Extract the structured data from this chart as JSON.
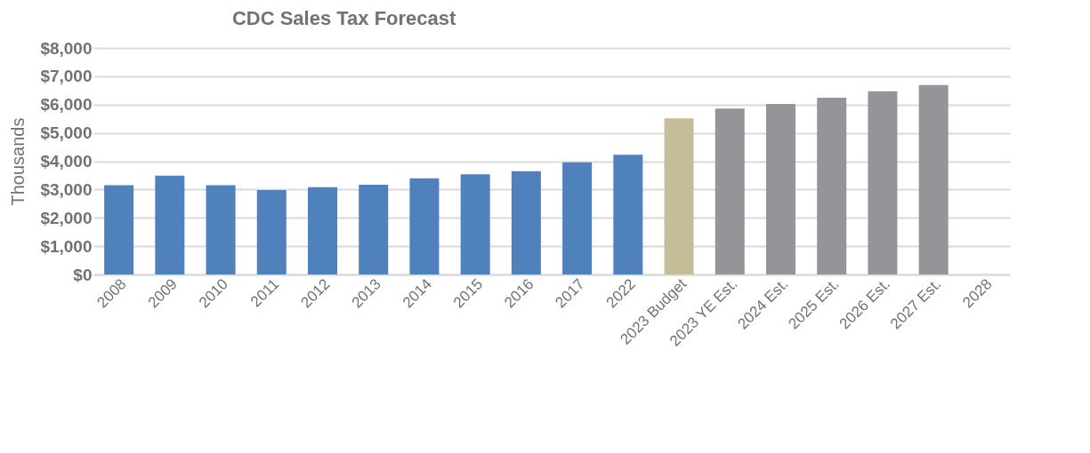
{
  "chart_data": {
    "type": "bar",
    "title": "CDC  Sales Tax Forecast",
    "ylabel": "Thousands",
    "categories": [
      "2008",
      "2009",
      "2010",
      "2011",
      "2012",
      "2013",
      "2014",
      "2015",
      "2016",
      "2017",
      "2022",
      "2023 Budget",
      "2023 YE Est.",
      "2024 Est.",
      "2025 Est.",
      "2026 Est.",
      "2027 Est.",
      "2028"
    ],
    "values": [
      3150,
      3490,
      3150,
      2980,
      3080,
      3170,
      3400,
      3540,
      3650,
      3960,
      4230,
      5510,
      5860,
      6020,
      6240,
      6470,
      6690,
      null
    ],
    "colors": [
      "#4f81bd",
      "#4f81bd",
      "#4f81bd",
      "#4f81bd",
      "#4f81bd",
      "#4f81bd",
      "#4f81bd",
      "#4f81bd",
      "#4f81bd",
      "#4f81bd",
      "#4f81bd",
      "#c4bd97",
      "#939598",
      "#939598",
      "#939598",
      "#939598",
      "#939598",
      "#939598"
    ],
    "ylim": [
      0,
      8000
    ],
    "yticks": [
      {
        "value": 0,
        "label": "$0"
      },
      {
        "value": 1000,
        "label": "$1,000"
      },
      {
        "value": 2000,
        "label": "$2,000"
      },
      {
        "value": 3000,
        "label": "$3,000"
      },
      {
        "value": 4000,
        "label": "$4,000"
      },
      {
        "value": 5000,
        "label": "$5,000"
      },
      {
        "value": 6000,
        "label": "$6,000"
      },
      {
        "value": 7000,
        "label": "$7,000"
      },
      {
        "value": 8000,
        "label": "$8,000"
      }
    ],
    "grid": "y"
  }
}
